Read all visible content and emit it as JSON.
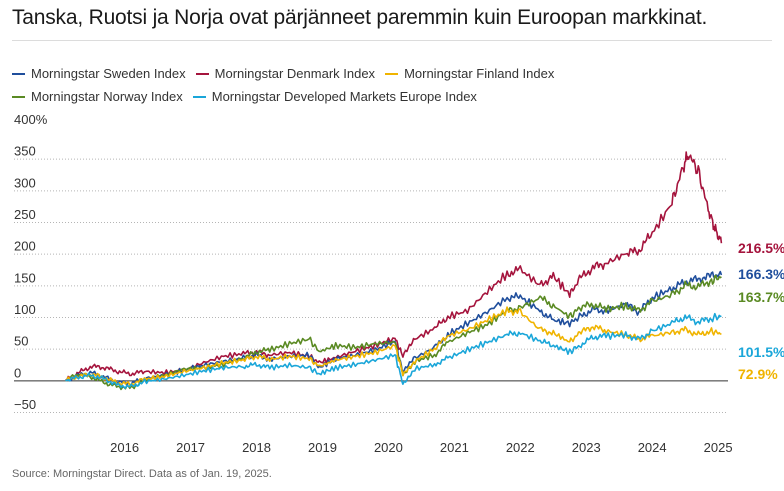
{
  "chart_data": {
    "type": "line",
    "title": "Tanska, Ruotsi ja Norja ovat pärjänneet paremmin kuin Euroopan markkinat.",
    "yunit_top_label": "400%",
    "y_ticks": [
      "400%",
      "350",
      "300",
      "250",
      "200",
      "150",
      "100",
      "50",
      "0",
      "−50"
    ],
    "y_tick_values": [
      400,
      350,
      300,
      250,
      200,
      150,
      100,
      50,
      0,
      -50
    ],
    "ylim": [
      -50,
      400
    ],
    "x_ticks": [
      "2016",
      "2017",
      "2018",
      "2019",
      "2020",
      "2021",
      "2022",
      "2023",
      "2024",
      "2025"
    ],
    "x_tick_values": [
      2016,
      2017,
      2018,
      2019,
      2020,
      2021,
      2022,
      2023,
      2024,
      2025
    ],
    "xlim": [
      2015.05,
      2025.15
    ],
    "grid": "horizontal dotted",
    "legend_position": "top",
    "series": [
      {
        "name": "Morningstar Sweden Index",
        "color": "#1f4e9c",
        "end_label": "166.3%",
        "points": [
          [
            2015.1,
            0
          ],
          [
            2015.3,
            8
          ],
          [
            2015.5,
            12
          ],
          [
            2015.7,
            5
          ],
          [
            2015.9,
            -3
          ],
          [
            2016.1,
            -5
          ],
          [
            2016.3,
            3
          ],
          [
            2016.6,
            8
          ],
          [
            2016.9,
            16
          ],
          [
            2017.2,
            24
          ],
          [
            2017.5,
            30
          ],
          [
            2017.8,
            35
          ],
          [
            2018.0,
            40
          ],
          [
            2018.2,
            33
          ],
          [
            2018.5,
            38
          ],
          [
            2018.8,
            40
          ],
          [
            2018.95,
            20
          ],
          [
            2019.2,
            34
          ],
          [
            2019.5,
            40
          ],
          [
            2019.8,
            48
          ],
          [
            2020.1,
            62
          ],
          [
            2020.22,
            12
          ],
          [
            2020.4,
            35
          ],
          [
            2020.7,
            52
          ],
          [
            2020.9,
            72
          ],
          [
            2021.2,
            90
          ],
          [
            2021.5,
            108
          ],
          [
            2021.8,
            130
          ],
          [
            2022.0,
            132
          ],
          [
            2022.3,
            110
          ],
          [
            2022.5,
            95
          ],
          [
            2022.75,
            90
          ],
          [
            2022.9,
            100
          ],
          [
            2023.1,
            112
          ],
          [
            2023.3,
            110
          ],
          [
            2023.6,
            120
          ],
          [
            2023.8,
            108
          ],
          [
            2024.0,
            130
          ],
          [
            2024.3,
            145
          ],
          [
            2024.5,
            155
          ],
          [
            2024.7,
            160
          ],
          [
            2024.9,
            165
          ],
          [
            2025.05,
            166.3
          ]
        ]
      },
      {
        "name": "Morningstar Denmark Index",
        "color": "#a5143d",
        "end_label": "216.5%",
        "points": [
          [
            2015.1,
            0
          ],
          [
            2015.3,
            12
          ],
          [
            2015.5,
            22
          ],
          [
            2015.7,
            20
          ],
          [
            2015.9,
            14
          ],
          [
            2016.1,
            10
          ],
          [
            2016.3,
            14
          ],
          [
            2016.6,
            12
          ],
          [
            2016.9,
            16
          ],
          [
            2017.2,
            28
          ],
          [
            2017.5,
            38
          ],
          [
            2017.8,
            42
          ],
          [
            2018.0,
            45
          ],
          [
            2018.2,
            40
          ],
          [
            2018.5,
            44
          ],
          [
            2018.8,
            38
          ],
          [
            2018.95,
            28
          ],
          [
            2019.2,
            36
          ],
          [
            2019.5,
            46
          ],
          [
            2019.8,
            55
          ],
          [
            2020.1,
            66
          ],
          [
            2020.22,
            38
          ],
          [
            2020.4,
            65
          ],
          [
            2020.7,
            82
          ],
          [
            2020.9,
            100
          ],
          [
            2021.2,
            110
          ],
          [
            2021.5,
            140
          ],
          [
            2021.8,
            168
          ],
          [
            2022.0,
            175
          ],
          [
            2022.3,
            150
          ],
          [
            2022.5,
            165
          ],
          [
            2022.75,
            135
          ],
          [
            2022.9,
            160
          ],
          [
            2023.1,
            178
          ],
          [
            2023.3,
            185
          ],
          [
            2023.6,
            200
          ],
          [
            2023.8,
            205
          ],
          [
            2024.0,
            232
          ],
          [
            2024.3,
            280
          ],
          [
            2024.45,
            330
          ],
          [
            2024.55,
            358
          ],
          [
            2024.7,
            330
          ],
          [
            2024.85,
            270
          ],
          [
            2024.95,
            240
          ],
          [
            2025.05,
            216.5
          ]
        ]
      },
      {
        "name": "Morningstar Finland Index",
        "color": "#f0b400",
        "end_label": "72.9%",
        "points": [
          [
            2015.1,
            0
          ],
          [
            2015.3,
            6
          ],
          [
            2015.5,
            10
          ],
          [
            2015.7,
            4
          ],
          [
            2015.9,
            -4
          ],
          [
            2016.1,
            -6
          ],
          [
            2016.3,
            2
          ],
          [
            2016.6,
            6
          ],
          [
            2016.9,
            14
          ],
          [
            2017.2,
            20
          ],
          [
            2017.5,
            28
          ],
          [
            2017.8,
            32
          ],
          [
            2018.0,
            38
          ],
          [
            2018.2,
            33
          ],
          [
            2018.5,
            38
          ],
          [
            2018.8,
            34
          ],
          [
            2018.95,
            22
          ],
          [
            2019.2,
            32
          ],
          [
            2019.5,
            38
          ],
          [
            2019.8,
            44
          ],
          [
            2020.1,
            55
          ],
          [
            2020.22,
            10
          ],
          [
            2020.4,
            30
          ],
          [
            2020.7,
            50
          ],
          [
            2020.9,
            70
          ],
          [
            2021.2,
            80
          ],
          [
            2021.5,
            95
          ],
          [
            2021.8,
            110
          ],
          [
            2022.0,
            108
          ],
          [
            2022.3,
            80
          ],
          [
            2022.5,
            75
          ],
          [
            2022.75,
            60
          ],
          [
            2022.9,
            75
          ],
          [
            2023.1,
            85
          ],
          [
            2023.3,
            78
          ],
          [
            2023.6,
            72
          ],
          [
            2023.8,
            65
          ],
          [
            2024.0,
            70
          ],
          [
            2024.3,
            76
          ],
          [
            2024.5,
            80
          ],
          [
            2024.7,
            72
          ],
          [
            2024.9,
            78
          ],
          [
            2025.05,
            72.9
          ]
        ]
      },
      {
        "name": "Morningstar Norway Index",
        "color": "#5a8a23",
        "end_label": "163.7%",
        "points": [
          [
            2015.1,
            0
          ],
          [
            2015.3,
            10
          ],
          [
            2015.5,
            5
          ],
          [
            2015.7,
            -4
          ],
          [
            2015.9,
            -10
          ],
          [
            2016.1,
            -12
          ],
          [
            2016.3,
            0
          ],
          [
            2016.6,
            8
          ],
          [
            2016.9,
            18
          ],
          [
            2017.2,
            20
          ],
          [
            2017.5,
            25
          ],
          [
            2017.8,
            35
          ],
          [
            2018.0,
            45
          ],
          [
            2018.2,
            48
          ],
          [
            2018.5,
            58
          ],
          [
            2018.8,
            65
          ],
          [
            2018.95,
            45
          ],
          [
            2019.2,
            55
          ],
          [
            2019.5,
            52
          ],
          [
            2019.8,
            58
          ],
          [
            2020.1,
            60
          ],
          [
            2020.22,
            10
          ],
          [
            2020.4,
            30
          ],
          [
            2020.7,
            40
          ],
          [
            2020.9,
            60
          ],
          [
            2021.2,
            75
          ],
          [
            2021.5,
            88
          ],
          [
            2021.8,
            110
          ],
          [
            2022.0,
            115
          ],
          [
            2022.3,
            130
          ],
          [
            2022.5,
            118
          ],
          [
            2022.75,
            100
          ],
          [
            2022.9,
            115
          ],
          [
            2023.1,
            120
          ],
          [
            2023.3,
            112
          ],
          [
            2023.6,
            118
          ],
          [
            2023.8,
            110
          ],
          [
            2024.0,
            125
          ],
          [
            2024.3,
            135
          ],
          [
            2024.5,
            150
          ],
          [
            2024.7,
            148
          ],
          [
            2024.9,
            158
          ],
          [
            2025.05,
            163.7
          ]
        ]
      },
      {
        "name": "Morningstar Developed Markets Europe Index",
        "color": "#1aa6d9",
        "end_label": "101.5%",
        "points": [
          [
            2015.1,
            0
          ],
          [
            2015.3,
            5
          ],
          [
            2015.5,
            8
          ],
          [
            2015.7,
            2
          ],
          [
            2015.9,
            -8
          ],
          [
            2016.1,
            -10
          ],
          [
            2016.3,
            -2
          ],
          [
            2016.6,
            2
          ],
          [
            2016.9,
            8
          ],
          [
            2017.2,
            15
          ],
          [
            2017.5,
            20
          ],
          [
            2017.8,
            22
          ],
          [
            2018.0,
            25
          ],
          [
            2018.2,
            20
          ],
          [
            2018.5,
            24
          ],
          [
            2018.8,
            20
          ],
          [
            2018.95,
            10
          ],
          [
            2019.2,
            20
          ],
          [
            2019.5,
            25
          ],
          [
            2019.8,
            32
          ],
          [
            2020.1,
            40
          ],
          [
            2020.22,
            -5
          ],
          [
            2020.4,
            18
          ],
          [
            2020.7,
            25
          ],
          [
            2020.9,
            35
          ],
          [
            2021.2,
            48
          ],
          [
            2021.5,
            60
          ],
          [
            2021.8,
            72
          ],
          [
            2022.0,
            75
          ],
          [
            2022.3,
            62
          ],
          [
            2022.5,
            55
          ],
          [
            2022.75,
            45
          ],
          [
            2022.9,
            55
          ],
          [
            2023.1,
            68
          ],
          [
            2023.3,
            70
          ],
          [
            2023.6,
            72
          ],
          [
            2023.8,
            65
          ],
          [
            2024.0,
            78
          ],
          [
            2024.3,
            90
          ],
          [
            2024.5,
            100
          ],
          [
            2024.7,
            92
          ],
          [
            2024.9,
            98
          ],
          [
            2025.05,
            101.5
          ]
        ]
      }
    ]
  },
  "source": "Source: Morningstar Direct. Data as of Jan. 19, 2025."
}
